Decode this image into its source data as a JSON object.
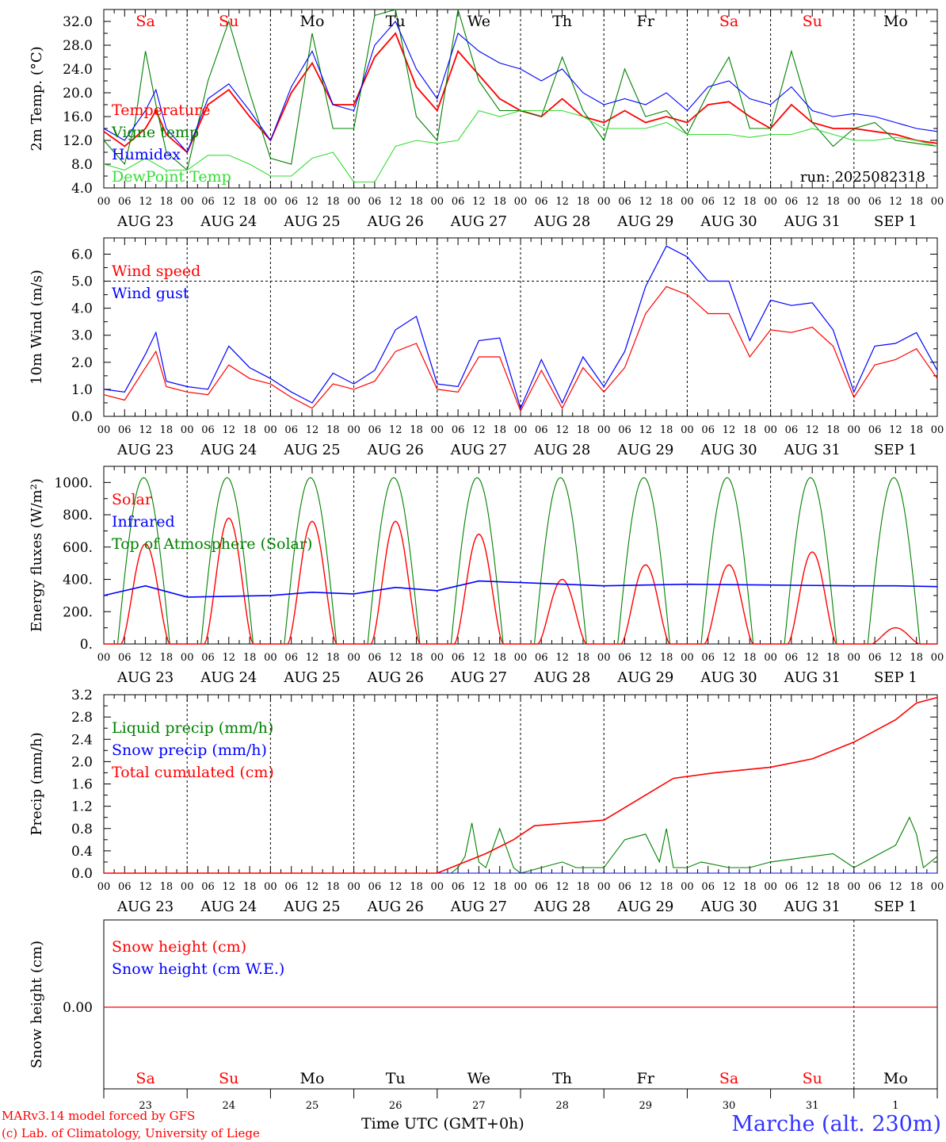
{
  "axis": {
    "hour_labels": [
      "00",
      "06",
      "12",
      "18"
    ],
    "date_labels": [
      "AUG 23",
      "AUG 24",
      "AUG 25",
      "AUG 26",
      "AUG 27",
      "AUG 28",
      "AUG 29",
      "AUG 30",
      "AUG 31",
      "SEP  1"
    ],
    "day_abbr": [
      "Sa",
      "Su",
      "Mo",
      "Tu",
      "We",
      "Th",
      "Fr",
      "Sa",
      "Su",
      "Mo"
    ],
    "weekend": [
      true,
      true,
      false,
      false,
      false,
      false,
      false,
      true,
      true,
      false
    ],
    "day_numbers": [
      "23",
      "24",
      "25",
      "26",
      "27",
      "28",
      "29",
      "30",
      "31",
      "1"
    ],
    "time_label": "Time UTC (GMT+0h)"
  },
  "colors": {
    "red": "#ff0000",
    "blue": "#0000ff",
    "green": "#008000",
    "light_green": "#33dd33",
    "black": "#000000"
  },
  "run_label": "run: 2025082318",
  "footer": {
    "credit1": "MARv3.14 model forced by GFS",
    "credit2": "(c) Lab. of Climatology, University of Liege",
    "station": "Marche (alt. 230m)"
  },
  "chart_data": [
    {
      "type": "line",
      "ylabel": "2m Temp. (°C)",
      "ylim": [
        4,
        34
      ],
      "yticks": [
        4,
        8,
        12,
        16,
        20,
        24,
        28,
        32
      ],
      "tick_decimals": 1,
      "x_unit": "hours since 2025-08-23 00 UTC",
      "series": [
        {
          "name": "Temperature",
          "color": "#ff0000",
          "x": [
            0,
            6,
            12,
            15,
            18,
            24,
            30,
            36,
            42,
            48,
            54,
            60,
            66,
            72,
            78,
            84,
            90,
            96,
            102,
            108,
            114,
            120,
            126,
            132,
            138,
            144,
            150,
            156,
            162,
            168,
            174,
            180,
            186,
            192,
            198,
            204,
            210,
            216,
            222,
            228,
            234,
            240
          ],
          "y": [
            13.5,
            11,
            14,
            17,
            13,
            10,
            18,
            20.5,
            16,
            12,
            20,
            25,
            18,
            18,
            26,
            30,
            21,
            17,
            27,
            23,
            19,
            17,
            16,
            19,
            16,
            15,
            17,
            15,
            16,
            15,
            18,
            18.5,
            16,
            14,
            18,
            15,
            14,
            14,
            13.5,
            13,
            12,
            11.5
          ]
        },
        {
          "name": "Vigne temp",
          "color": "#008000",
          "x": [
            0,
            6,
            9,
            12,
            15,
            18,
            24,
            30,
            36,
            42,
            48,
            54,
            60,
            66,
            72,
            78,
            84,
            90,
            96,
            102,
            108,
            114,
            120,
            126,
            132,
            138,
            144,
            150,
            156,
            162,
            168,
            174,
            180,
            186,
            192,
            198,
            204,
            210,
            216,
            222,
            228,
            234,
            240
          ],
          "y": [
            12,
            8,
            15,
            27,
            18,
            10,
            7,
            22,
            32,
            20,
            9,
            8,
            30,
            14,
            14,
            33,
            34,
            16,
            12,
            34,
            22,
            17,
            17,
            16,
            26,
            17,
            12,
            24,
            16,
            17,
            13,
            20,
            26,
            14,
            14,
            27,
            15,
            11,
            14,
            15,
            12,
            11.5,
            11
          ]
        },
        {
          "name": "Humidex",
          "color": "#0000ff",
          "x": [
            0,
            6,
            12,
            15,
            18,
            24,
            30,
            36,
            42,
            48,
            54,
            60,
            66,
            72,
            78,
            84,
            90,
            96,
            102,
            108,
            114,
            120,
            126,
            132,
            138,
            144,
            150,
            156,
            162,
            168,
            174,
            180,
            186,
            192,
            198,
            204,
            210,
            216,
            222,
            228,
            234,
            240
          ],
          "y": [
            14,
            12,
            17,
            20.5,
            14,
            10,
            19,
            21.5,
            17,
            12,
            21,
            27,
            18,
            17,
            28,
            32,
            24,
            19,
            30,
            27,
            25,
            24,
            22,
            24,
            20,
            18,
            19,
            18,
            20,
            17,
            21,
            22,
            19,
            18,
            21,
            17,
            16,
            16.5,
            16,
            15,
            14,
            13.5
          ]
        },
        {
          "name": "DewPoint Temp",
          "color": "#33dd33",
          "x": [
            0,
            6,
            12,
            18,
            24,
            30,
            36,
            42,
            48,
            54,
            60,
            66,
            72,
            78,
            84,
            90,
            96,
            102,
            108,
            114,
            120,
            126,
            132,
            138,
            144,
            150,
            156,
            162,
            168,
            174,
            180,
            186,
            192,
            198,
            204,
            210,
            216,
            222,
            228,
            234,
            240
          ],
          "y": [
            8,
            7,
            9,
            7,
            7,
            9.5,
            9.5,
            8,
            6,
            6,
            9,
            10,
            5,
            5,
            11,
            12,
            11.5,
            12,
            17,
            16,
            17,
            17,
            17,
            16,
            14,
            14,
            14,
            15,
            13,
            13,
            13,
            12.5,
            13,
            13,
            14,
            13,
            12,
            12,
            12.5,
            12,
            11
          ]
        }
      ]
    },
    {
      "type": "line",
      "ylabel": "10m Wind (m/s)",
      "ylim": [
        0,
        6.6
      ],
      "yticks": [
        0,
        1,
        2,
        3,
        4,
        5,
        6
      ],
      "tick_decimals": 1,
      "x_unit": "hours since 2025-08-23 00 UTC",
      "reference_line": 5.0,
      "series": [
        {
          "name": "Wind speed",
          "color": "#ff0000",
          "x": [
            0,
            6,
            12,
            15,
            18,
            24,
            30,
            36,
            42,
            48,
            54,
            60,
            66,
            72,
            78,
            84,
            90,
            96,
            102,
            108,
            114,
            120,
            126,
            132,
            138,
            144,
            150,
            156,
            162,
            168,
            174,
            180,
            186,
            192,
            198,
            204,
            210,
            216,
            222,
            228,
            234,
            240
          ],
          "y": [
            0.8,
            0.6,
            1.8,
            2.4,
            1.1,
            0.9,
            0.8,
            1.9,
            1.4,
            1.2,
            0.7,
            0.3,
            1.2,
            1.0,
            1.3,
            2.4,
            2.7,
            1.0,
            0.9,
            2.2,
            2.2,
            0.2,
            1.7,
            0.3,
            1.8,
            0.9,
            1.8,
            3.8,
            4.8,
            4.5,
            3.8,
            3.8,
            2.2,
            3.2,
            3.1,
            3.3,
            2.6,
            0.7,
            1.9,
            2.1,
            2.5,
            1.4
          ]
        },
        {
          "name": "Wind gust",
          "color": "#0000ff",
          "x": [
            0,
            6,
            12,
            15,
            18,
            24,
            30,
            36,
            42,
            48,
            54,
            60,
            66,
            72,
            78,
            84,
            90,
            96,
            102,
            108,
            114,
            120,
            126,
            132,
            138,
            144,
            150,
            156,
            162,
            168,
            174,
            180,
            186,
            192,
            198,
            204,
            210,
            216,
            222,
            228,
            234,
            240
          ],
          "y": [
            1.0,
            0.9,
            2.3,
            3.1,
            1.3,
            1.1,
            1.0,
            2.6,
            1.8,
            1.4,
            0.9,
            0.5,
            1.6,
            1.2,
            1.7,
            3.2,
            3.7,
            1.2,
            1.1,
            2.8,
            2.9,
            0.3,
            2.1,
            0.5,
            2.2,
            1.1,
            2.4,
            4.8,
            6.3,
            5.9,
            5.0,
            5.0,
            2.8,
            4.3,
            4.1,
            4.2,
            3.2,
            0.9,
            2.6,
            2.7,
            3.1,
            1.7
          ]
        }
      ]
    },
    {
      "type": "line",
      "ylabel": "Energy fluxes (W/m²)",
      "ylim": [
        0,
        1100
      ],
      "yticks": [
        0,
        200,
        400,
        600,
        800,
        1000
      ],
      "tick_decimals": 0,
      "x_unit": "hours since 2025-08-23 00 UTC",
      "series": [
        {
          "name": "Solar",
          "color": "#ff0000",
          "daily_peaks": [
            620,
            780,
            760,
            760,
            680,
            400,
            490,
            490,
            570,
            100
          ]
        },
        {
          "name": "Infrared",
          "color": "#0000ff",
          "x": [
            0,
            12,
            24,
            48,
            60,
            72,
            84,
            96,
            108,
            120,
            144,
            168,
            192,
            216,
            228,
            240
          ],
          "y": [
            300,
            360,
            290,
            300,
            320,
            310,
            350,
            330,
            390,
            380,
            360,
            370,
            365,
            360,
            360,
            355
          ]
        },
        {
          "name": "Top of Atmosphere (Solar)",
          "color": "#008000",
          "daily_peak": 1030,
          "sunrise_h": 4,
          "sunset_h": 19
        }
      ]
    },
    {
      "type": "line",
      "ylabel": "Precip (mm/h)",
      "ylim": [
        0,
        3.2
      ],
      "yticks": [
        0,
        0.4,
        0.8,
        1.2,
        1.6,
        2.0,
        2.4,
        2.8,
        3.2
      ],
      "tick_decimals": 1,
      "x_unit": "hours since 2025-08-23 00 UTC",
      "series": [
        {
          "name": "Liquid precip (mm/h)",
          "color": "#008000",
          "x": [
            0,
            96,
            100,
            102,
            104,
            106,
            108,
            110,
            114,
            118,
            120,
            126,
            132,
            136,
            144,
            150,
            156,
            160,
            162,
            164,
            168,
            172,
            180,
            186,
            192,
            204,
            210,
            216,
            222,
            228,
            232,
            234,
            236,
            240
          ],
          "y": [
            0,
            0,
            0,
            0.1,
            0.3,
            0.9,
            0.2,
            0.1,
            0.8,
            0.1,
            0,
            0.1,
            0.2,
            0.1,
            0.1,
            0.6,
            0.7,
            0.2,
            0.8,
            0.1,
            0.1,
            0.2,
            0.1,
            0.1,
            0.2,
            0.3,
            0.35,
            0.1,
            0.3,
            0.5,
            1.0,
            0.7,
            0.1,
            0.3
          ]
        },
        {
          "name": "Snow precip (mm/h)",
          "color": "#0000ff",
          "x": [
            0,
            240
          ],
          "y": [
            0,
            0
          ]
        },
        {
          "name": "Total cumulated (cm)",
          "color": "#ff0000",
          "x": [
            0,
            96,
            110,
            118,
            124,
            134,
            144,
            156,
            164,
            176,
            192,
            204,
            216,
            228,
            234,
            240
          ],
          "y": [
            0,
            0,
            0.35,
            0.6,
            0.85,
            0.9,
            0.95,
            1.4,
            1.7,
            1.8,
            1.9,
            2.05,
            2.35,
            2.75,
            3.05,
            3.15
          ]
        }
      ]
    },
    {
      "type": "line",
      "ylabel": "Snow height (cm)",
      "ytick_label": "0.00",
      "x_unit": "hours since 2025-08-23 00 UTC",
      "series": [
        {
          "name": "Snow height (cm)",
          "color": "#ff0000",
          "x": [
            0,
            240
          ],
          "y": [
            0,
            0
          ]
        },
        {
          "name": "Snow height (cm W.E.)",
          "color": "#0000ff",
          "x": [
            0,
            240
          ],
          "y": [
            0,
            0
          ]
        }
      ]
    }
  ]
}
